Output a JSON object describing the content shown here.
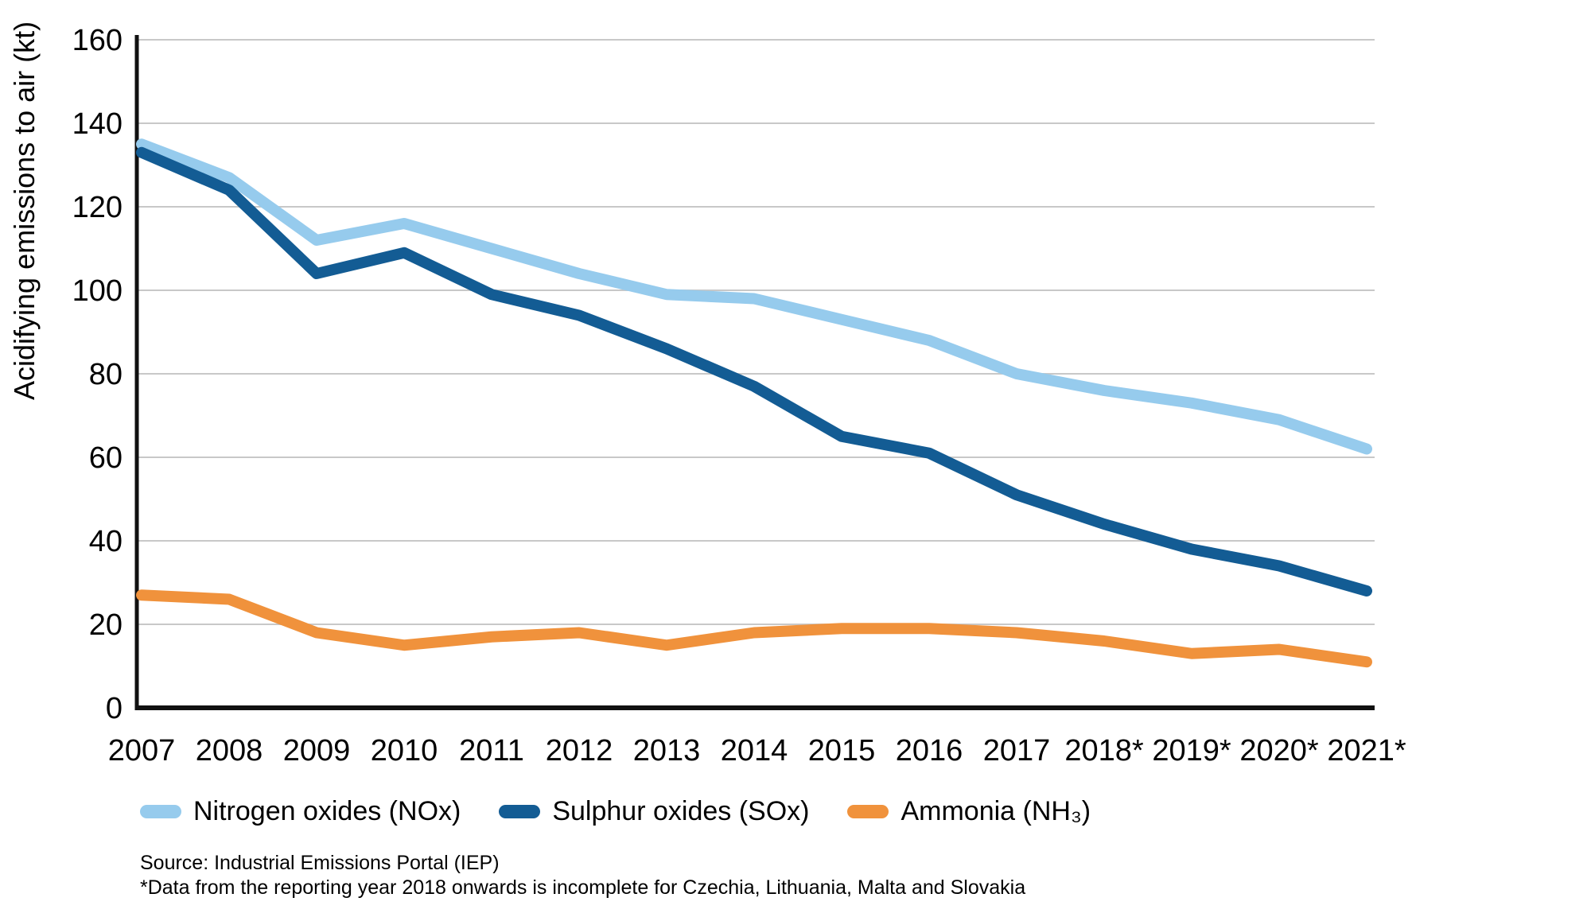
{
  "y_axis_title": "Acidifying emissions to air (kt)",
  "source_line1": "Source: Industrial Emissions Portal (IEP)",
  "source_line2": "*Data from the reporting year 2018 onwards is incomplete for Czechia, Lithuania, Malta and Slovakia",
  "colors": {
    "nox": "#96CBED",
    "sox": "#135C94",
    "nh3": "#F0923C",
    "grid": "#C8C8C8",
    "axis": "#111111"
  },
  "chart_data": {
    "type": "line",
    "title": "",
    "xlabel": "",
    "ylabel": "Acidifying emissions to air (kt)",
    "categories": [
      "2007",
      "2008",
      "2009",
      "2010",
      "2011",
      "2012",
      "2013",
      "2014",
      "2015",
      "2016",
      "2017",
      "2018*",
      "2019*",
      "2020*",
      "2021*"
    ],
    "series": [
      {
        "name": "Nitrogen oxides (NOx)",
        "color": "#96CBED",
        "values": [
          135,
          127,
          112,
          116,
          110,
          104,
          99,
          98,
          93,
          88,
          80,
          76,
          73,
          69,
          62
        ]
      },
      {
        "name": "Sulphur oxides (SOx)",
        "color": "#135C94",
        "values": [
          133,
          124,
          104,
          109,
          99,
          94,
          86,
          77,
          65,
          61,
          51,
          44,
          38,
          34,
          28
        ]
      },
      {
        "name": "Ammonia (NH₃)",
        "color": "#F0923C",
        "values": [
          27,
          26,
          18,
          15,
          17,
          18,
          15,
          18,
          19,
          19,
          18,
          16,
          13,
          14,
          11
        ]
      }
    ],
    "ylim": [
      0,
      160
    ],
    "ytick_step": 20,
    "grid": true,
    "legend_position": "bottom"
  }
}
